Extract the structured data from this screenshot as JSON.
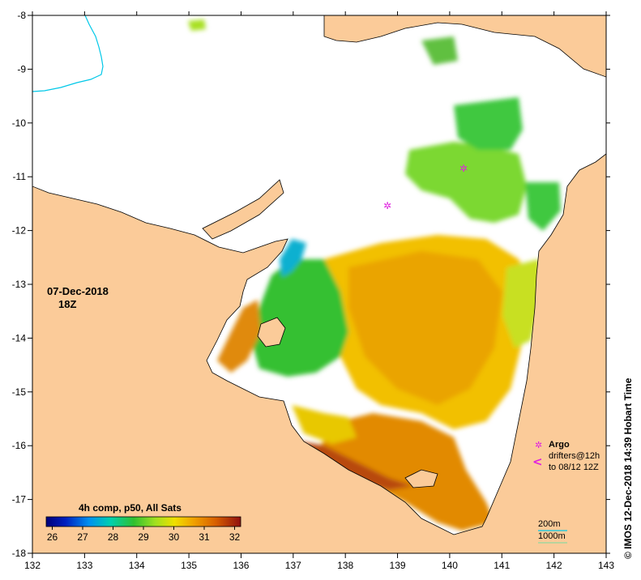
{
  "map": {
    "lon_ticks": [
      "132",
      "133",
      "134",
      "135",
      "136",
      "137",
      "138",
      "139",
      "140",
      "141",
      "142",
      "143"
    ],
    "lat_ticks": [
      "-8",
      "-9",
      "-10",
      "-11",
      "-12",
      "-13",
      "-14",
      "-15",
      "-16",
      "-17",
      "-18"
    ],
    "date": "07-Dec-2018",
    "time": "18Z",
    "credit": "© IMOS 12-Dec-2018 14:39 Hobart Time",
    "legend": {
      "argo_symbol": "✲",
      "argo_label": "Argo",
      "drifter_symbol": "<",
      "drifter_label_1": "drifters@12h",
      "drifter_label_2": "to 08/12 12Z",
      "depth_200": "200m",
      "depth_1000": "1000m"
    },
    "colorbar": {
      "title": "4h comp, p50, All Sats",
      "labels": [
        "26",
        "27",
        "28",
        "29",
        "30",
        "31",
        "32"
      ],
      "range": [
        25.8,
        32.2
      ]
    },
    "colors": {
      "land": "#fbcb99",
      "ocean_nodata": "#ffffff",
      "argo": "#e020e0",
      "isobath_200": "#00c8e8",
      "isobath_1000": "#90d8a0"
    }
  }
}
